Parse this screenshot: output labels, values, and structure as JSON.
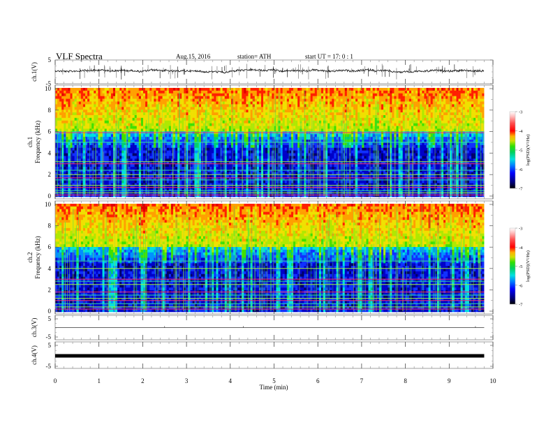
{
  "header": {
    "title": "VLF  Spectra",
    "date": "Aug.15, 2016",
    "station": "station= ATH",
    "start": "start  UT  =    17: 0   : 1"
  },
  "chart_data": [
    {
      "type": "line",
      "name": "ch1-waveform",
      "ylabel": "ch.1(V)",
      "ylim": [
        -5,
        5
      ],
      "yticks": [
        "5",
        "-5"
      ],
      "xlim": [
        0,
        10
      ],
      "data_xmax": 9.8,
      "baseline": 0.5,
      "description_values": "noisy waveform around ~0.5 V with spikes up to ±5 V"
    },
    {
      "type": "heatmap",
      "name": "ch1-spectrogram",
      "ylabel_line1": "ch.1",
      "ylabel_line2": "Frequency  (kHz)",
      "ylim": [
        0,
        10
      ],
      "yticks": [
        "0",
        "2",
        "4",
        "6",
        "8",
        "10"
      ],
      "xlim": [
        0,
        10
      ],
      "data_xmax": 9.8,
      "colorbar": {
        "label": "log(PSD)(V²/Hz)",
        "range": [
          -7,
          -3
        ],
        "ticks": [
          "-3",
          "-4",
          "-5",
          "-6",
          "-7"
        ]
      },
      "bands_khz": [
        0.1,
        0.3,
        0.5,
        0.8,
        1.0,
        1.5,
        1.7,
        2.0,
        2.4,
        3.0,
        3.2,
        5.0,
        5.9
      ]
    },
    {
      "type": "heatmap",
      "name": "ch2-spectrogram",
      "ylabel_line1": "ch.2",
      "ylabel_line2": "Frequency  (kHz)",
      "ylim": [
        0,
        10
      ],
      "yticks": [
        "0",
        "2",
        "4",
        "6",
        "8",
        "10"
      ],
      "xlim": [
        0,
        10
      ],
      "data_xmax": 9.8,
      "colorbar": {
        "label": "log(PSD)(V²/Hz)",
        "range": [
          -7,
          -3
        ],
        "ticks": [
          "-3",
          "-4",
          "-5",
          "-6",
          "-7"
        ]
      },
      "bands_khz": [
        0.2,
        0.4,
        0.7,
        1.0,
        1.2,
        1.5,
        1.8,
        2.5,
        2.8,
        3.0,
        4.0,
        4.7
      ]
    },
    {
      "type": "line",
      "name": "ch3-waveform",
      "ylabel": "ch.3(V)",
      "ylim": [
        -5,
        5
      ],
      "yticks": [
        "5",
        "-5"
      ],
      "xlim": [
        0,
        10
      ],
      "data_xmax": 9.8,
      "baseline": 0.2
    },
    {
      "type": "line",
      "name": "ch4-waveform",
      "ylabel": "ch.4(V)",
      "ylim": [
        -5,
        5
      ],
      "yticks": [
        "5",
        "-5"
      ],
      "xlim": [
        0,
        10
      ],
      "data_xmax": 9.8,
      "baseline": 0.0
    }
  ],
  "xaxis": {
    "label": "Time  (min)",
    "ticks": [
      "0",
      "1",
      "2",
      "3",
      "4",
      "5",
      "6",
      "7",
      "8",
      "9",
      "10"
    ]
  }
}
